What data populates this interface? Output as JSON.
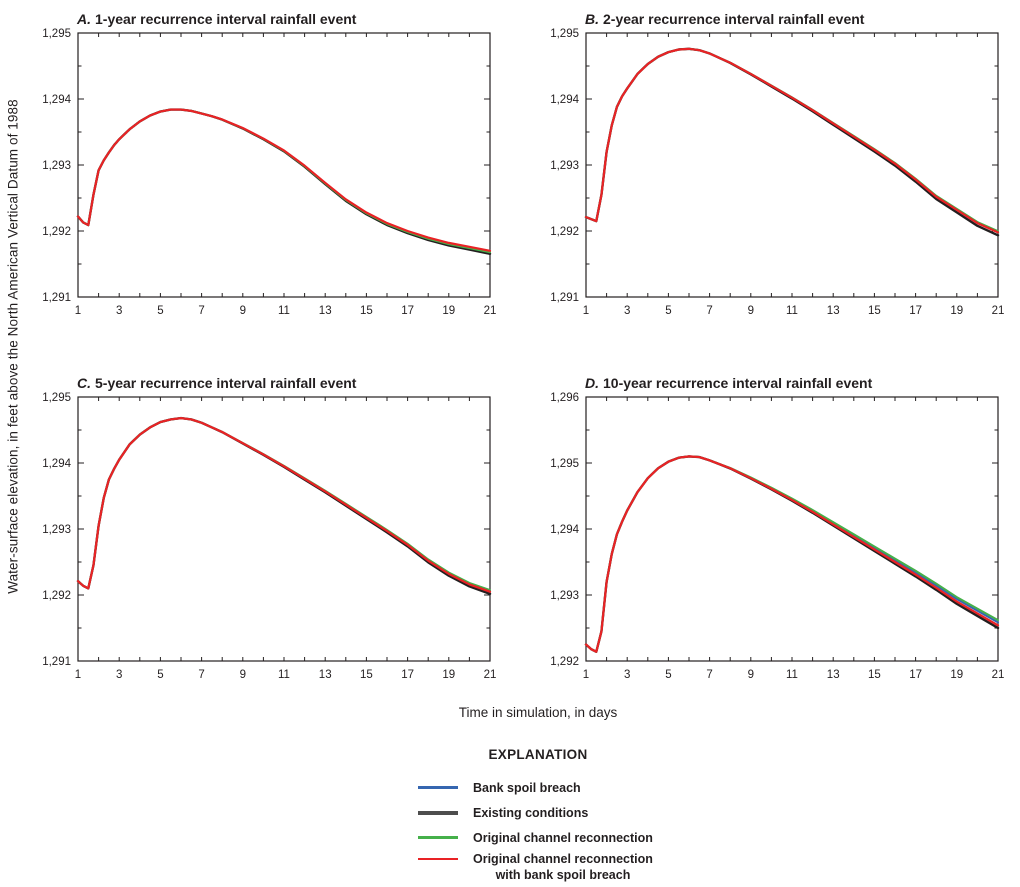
{
  "figure": {
    "y_axis_label": "Water-surface elevation, in feet above the North American Vertical Datum of 1988",
    "x_axis_label": "Time in simulation, in days",
    "explanation_title": "EXPLANATION"
  },
  "legend": {
    "items": [
      {
        "label": "Bank spoil breach",
        "color": "#3566b0",
        "thickness": 2.2
      },
      {
        "label": "Existing conditions",
        "color": "#4d4d4d",
        "thickness": 4
      },
      {
        "label": "Original channel reconnection",
        "color": "#45b04a",
        "thickness": 2.2
      },
      {
        "label": "Original channel reconnection",
        "label_line2": "with bank spoil breach",
        "color": "#e92225",
        "thickness": 2.2
      }
    ]
  },
  "chart_data": {
    "type": "line",
    "xlabel": "Time in simulation, in days",
    "ylabel": "Water-surface elevation, in feet above the North American Vertical Datum of 1988",
    "xlim": [
      1,
      21
    ],
    "x_minor_step": 1,
    "x_ticks": [
      1,
      3,
      5,
      7,
      9,
      11,
      13,
      15,
      17,
      19,
      21
    ],
    "x_tick_labels": [
      "1",
      "3",
      "5",
      "7",
      "9",
      "11",
      "13",
      "15",
      "17",
      "19",
      "21"
    ],
    "fan_start_day": 7,
    "x_days": [
      1,
      1.25,
      1.5,
      1.75,
      2,
      2.25,
      2.5,
      2.75,
      3,
      3.5,
      4,
      4.5,
      5,
      5.5,
      6,
      6.5,
      7,
      7.5,
      8,
      9,
      10,
      11,
      12,
      13,
      14,
      15,
      16,
      17,
      18,
      19,
      20,
      21
    ],
    "series_names": [
      "Bank spoil breach",
      "Existing conditions",
      "Original channel reconnection",
      "Original channel reconnection with bank spoil breach"
    ],
    "panels": [
      {
        "label": "A.",
        "title": "1-year recurrence interval rainfall event",
        "ylim": [
          1291,
          1295
        ],
        "y_minor_step": 0.5,
        "y_ticks": [
          1291,
          1292,
          1293,
          1294,
          1295
        ],
        "y_tick_labels": [
          "1,291",
          "1,292",
          "1,293",
          "1,294",
          "1,295"
        ],
        "base_values": [
          1292.22,
          1292.13,
          1292.09,
          1292.55,
          1292.92,
          1293.07,
          1293.19,
          1293.3,
          1293.39,
          1293.54,
          1293.66,
          1293.75,
          1293.81,
          1293.84,
          1293.84,
          1293.82,
          1293.78,
          1293.74,
          1293.69,
          1293.56,
          1293.4,
          1293.22,
          1292.99,
          1292.73,
          1292.48,
          1292.28,
          1292.12,
          1292.0,
          1291.9,
          1291.82,
          1291.76,
          1291.7
        ],
        "series": [
          {
            "name": "Bank spoil breach",
            "color": "#3566b0",
            "delta_at_day21_ft": -0.012
          },
          {
            "name": "Existing conditions",
            "color": "#231f20",
            "delta_at_day21_ft": -0.045
          },
          {
            "name": "Original channel reconnection",
            "color": "#45b04a",
            "delta_at_day21_ft": -0.022
          },
          {
            "name": "Original channel reconnection with bank spoil breach",
            "color": "#e92225",
            "delta_at_day21_ft": 0
          }
        ]
      },
      {
        "label": "B.",
        "title": "2-year recurrence interval rainfall event",
        "ylim": [
          1291,
          1295
        ],
        "y_minor_step": 0.5,
        "y_ticks": [
          1291,
          1292,
          1293,
          1294,
          1295
        ],
        "y_tick_labels": [
          "1,291",
          "1,292",
          "1,293",
          "1,294",
          "1,295"
        ],
        "base_values": [
          1292.21,
          1292.18,
          1292.15,
          1292.55,
          1293.2,
          1293.6,
          1293.88,
          1294.04,
          1294.16,
          1294.38,
          1294.53,
          1294.64,
          1294.71,
          1294.75,
          1294.76,
          1294.74,
          1294.69,
          1294.62,
          1294.55,
          1294.38,
          1294.2,
          1294.02,
          1293.83,
          1293.63,
          1293.43,
          1293.23,
          1293.02,
          1292.78,
          1292.52,
          1292.32,
          1292.12,
          1291.98
        ],
        "series": [
          {
            "name": "Bank spoil breach",
            "color": "#3566b0",
            "delta_at_day21_ft": 0.008
          },
          {
            "name": "Existing conditions",
            "color": "#231f20",
            "delta_at_day21_ft": -0.045
          },
          {
            "name": "Original channel reconnection",
            "color": "#45b04a",
            "delta_at_day21_ft": 0.018
          },
          {
            "name": "Original channel reconnection with bank spoil breach",
            "color": "#e92225",
            "delta_at_day21_ft": 0
          }
        ]
      },
      {
        "label": "C.",
        "title": "5-year recurrence interval rainfall event",
        "ylim": [
          1291,
          1295
        ],
        "y_minor_step": 0.5,
        "y_ticks": [
          1291,
          1292,
          1293,
          1294,
          1295
        ],
        "y_tick_labels": [
          "1,291",
          "1,292",
          "1,293",
          "1,294",
          "1,295"
        ],
        "base_values": [
          1292.21,
          1292.14,
          1292.1,
          1292.45,
          1293.05,
          1293.47,
          1293.75,
          1293.91,
          1294.05,
          1294.28,
          1294.43,
          1294.54,
          1294.62,
          1294.66,
          1294.68,
          1294.66,
          1294.61,
          1294.54,
          1294.47,
          1294.3,
          1294.13,
          1293.95,
          1293.76,
          1293.57,
          1293.37,
          1293.17,
          1292.97,
          1292.76,
          1292.52,
          1292.32,
          1292.16,
          1292.05
        ],
        "series": [
          {
            "name": "Bank spoil breach",
            "color": "#3566b0",
            "delta_at_day21_ft": 0.012
          },
          {
            "name": "Existing conditions",
            "color": "#231f20",
            "delta_at_day21_ft": -0.032
          },
          {
            "name": "Original channel reconnection",
            "color": "#45b04a",
            "delta_at_day21_ft": 0.025
          },
          {
            "name": "Original channel reconnection with bank spoil breach",
            "color": "#e92225",
            "delta_at_day21_ft": 0
          }
        ]
      },
      {
        "label": "D.",
        "title": "10-year recurrence interval rainfall event",
        "ylim": [
          1292,
          1296
        ],
        "y_minor_step": 0.5,
        "y_ticks": [
          1292,
          1293,
          1294,
          1295,
          1296
        ],
        "y_tick_labels": [
          "1,292",
          "1,293",
          "1,294",
          "1,295",
          "1,296"
        ],
        "base_values": [
          1292.25,
          1292.18,
          1292.14,
          1292.45,
          1293.2,
          1293.62,
          1293.92,
          1294.11,
          1294.28,
          1294.56,
          1294.77,
          1294.92,
          1295.02,
          1295.08,
          1295.1,
          1295.09,
          1295.04,
          1294.98,
          1294.92,
          1294.77,
          1294.61,
          1294.44,
          1294.26,
          1294.07,
          1293.88,
          1293.69,
          1293.5,
          1293.31,
          1293.11,
          1292.9,
          1292.72,
          1292.54
        ],
        "series": [
          {
            "name": "Bank spoil breach",
            "color": "#3566b0",
            "delta_at_day21_ft": 0.045
          },
          {
            "name": "Existing conditions",
            "color": "#231f20",
            "delta_at_day21_ft": -0.04
          },
          {
            "name": "Original channel reconnection",
            "color": "#45b04a",
            "delta_at_day21_ft": 0.08
          },
          {
            "name": "Original channel reconnection with bank spoil breach",
            "color": "#e92225",
            "delta_at_day21_ft": 0
          }
        ]
      }
    ]
  }
}
